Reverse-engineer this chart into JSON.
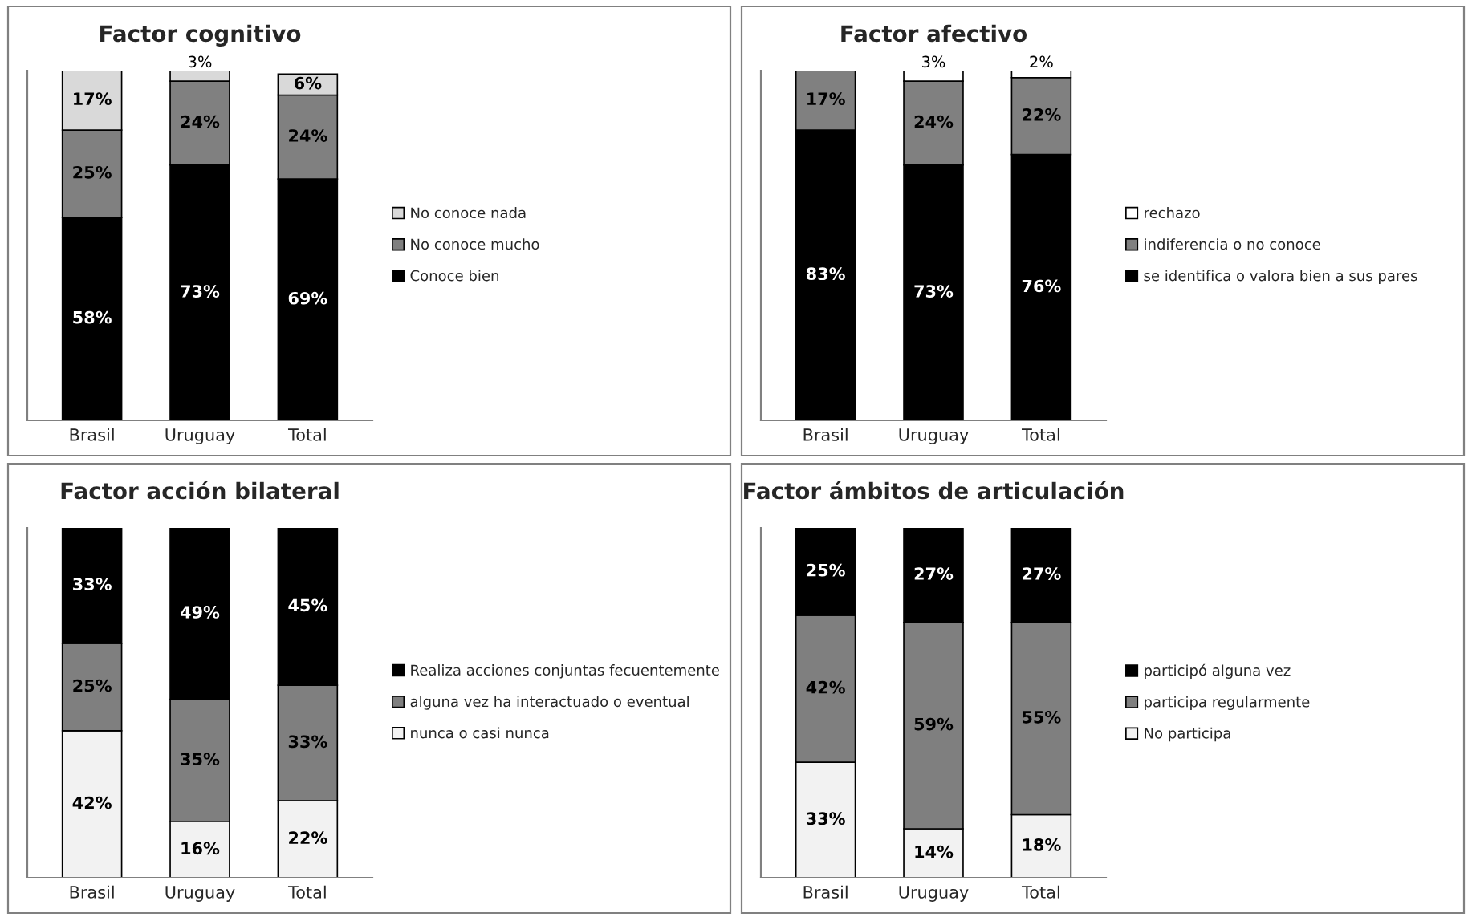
{
  "chart_data": [
    {
      "type": "bar",
      "title": "Factor cognitivo",
      "stacked": true,
      "legend": "right",
      "categories": [
        "Brasil",
        "Uruguay",
        "Total"
      ],
      "series": [
        {
          "name": "Conoce bien",
          "color": "#000000",
          "values": [
            58,
            73,
            69
          ],
          "value_labels": [
            "58%",
            "73%",
            "69%"
          ]
        },
        {
          "name": "No conoce mucho",
          "color": "#808080",
          "values": [
            25,
            24,
            24
          ],
          "value_labels": [
            "25%",
            "24%",
            "24%"
          ]
        },
        {
          "name": "No conoce nada",
          "color": "#d9d9d9",
          "values": [
            17,
            3,
            6
          ],
          "value_labels": [
            "17%",
            "3%",
            "6%"
          ]
        }
      ]
    },
    {
      "type": "bar",
      "title": "Factor afectivo",
      "stacked": true,
      "legend": "right",
      "categories": [
        "Brasil",
        "Uruguay",
        "Total"
      ],
      "series": [
        {
          "name": "se identifica o valora bien a sus pares",
          "color": "#000000",
          "values": [
            83,
            73,
            76
          ],
          "value_labels": [
            "83%",
            "73%",
            "76%"
          ]
        },
        {
          "name": "indiferencia o no conoce",
          "color": "#808080",
          "values": [
            17,
            24,
            22
          ],
          "value_labels": [
            "17%",
            "24%",
            "22%"
          ]
        },
        {
          "name": "rechazo",
          "color": "#ffffff",
          "values": [
            null,
            3,
            2
          ],
          "value_labels": [
            null,
            "3%",
            "2%"
          ]
        }
      ]
    },
    {
      "type": "bar",
      "title": "Factor acción bilateral",
      "stacked": true,
      "legend": "right",
      "categories": [
        "Brasil",
        "Uruguay",
        "Total"
      ],
      "series": [
        {
          "name": "nunca o casi nunca",
          "color": "#f2f2f2",
          "values": [
            42,
            16,
            22
          ],
          "value_labels": [
            "42%",
            "16%",
            "22%"
          ]
        },
        {
          "name": "alguna vez ha interactuado o eventual",
          "color": "#7f7f7f",
          "values": [
            25,
            35,
            33
          ],
          "value_labels": [
            "25%",
            "35%",
            "33%"
          ]
        },
        {
          "name": "Realiza acciones conjuntas fecuentemente",
          "color": "#000000",
          "values": [
            33,
            49,
            45
          ],
          "value_labels": [
            "33%",
            "49%",
            "45%"
          ]
        }
      ]
    },
    {
      "type": "bar",
      "title": "Factor ámbitos de articulación",
      "stacked": true,
      "legend": "right",
      "categories": [
        "Brasil",
        "Uruguay",
        "Total"
      ],
      "series": [
        {
          "name": "No participa",
          "color": "#f2f2f2",
          "values": [
            33,
            14,
            18
          ],
          "value_labels": [
            "33%",
            "14%",
            "18%"
          ]
        },
        {
          "name": "participa regularmente",
          "color": "#7f7f7f",
          "values": [
            42,
            59,
            55
          ],
          "value_labels": [
            "42%",
            "59%",
            "55%"
          ]
        },
        {
          "name": "participó alguna vez",
          "color": "#000000",
          "values": [
            25,
            27,
            27
          ],
          "value_labels": [
            "25%",
            "27%",
            "27%"
          ]
        }
      ]
    }
  ]
}
